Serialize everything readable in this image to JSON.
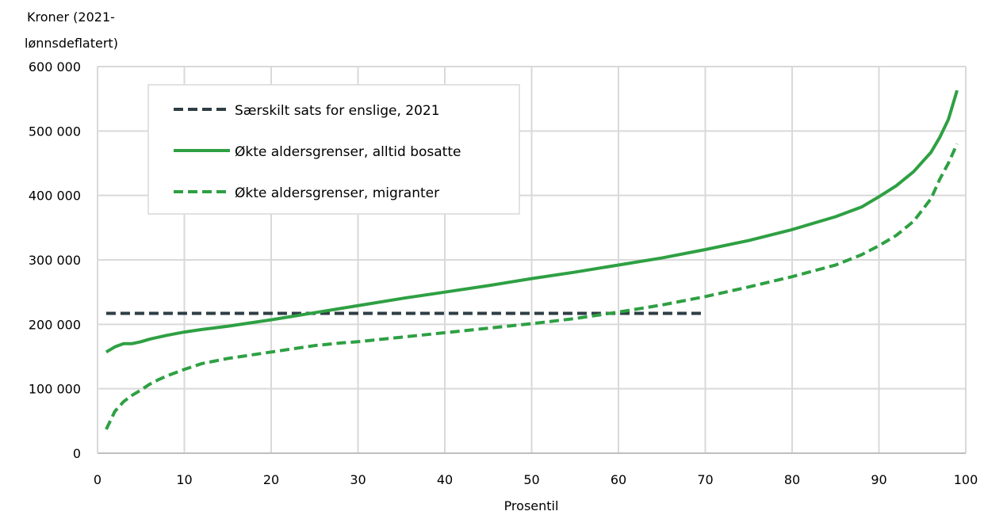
{
  "chart_data": {
    "type": "line",
    "xlabel": "Prosentil",
    "ylabel": [
      "Kroner (2021-",
      "lønnsdeflatert)"
    ],
    "xlim": [
      0,
      100
    ],
    "ylim": [
      0,
      600000
    ],
    "xticks": [
      0,
      10,
      20,
      30,
      40,
      50,
      60,
      70,
      80,
      90,
      100
    ],
    "yticks": [
      0,
      100000,
      200000,
      300000,
      400000,
      500000,
      600000
    ],
    "xtick_labels": [
      "0",
      "10",
      "20",
      "30",
      "40",
      "50",
      "60",
      "70",
      "80",
      "90",
      "100"
    ],
    "ytick_labels": [
      "0",
      "100 000",
      "200 000",
      "300 000",
      "400 000",
      "500 000",
      "600 000"
    ],
    "grid": true,
    "legend_position": "top-left",
    "series": [
      {
        "name": "Særskilt sats for enslige, 2021",
        "color": "#2d3e44",
        "style": "dashed",
        "x": [
          1,
          70
        ],
        "y": [
          217000,
          217000
        ]
      },
      {
        "name": "Økte aldersgrenser, alltid bosatte",
        "color": "#2ea043",
        "style": "solid",
        "x": [
          1,
          2,
          3,
          4,
          5,
          6,
          8,
          10,
          12,
          15,
          20,
          25,
          30,
          35,
          40,
          45,
          50,
          55,
          60,
          65,
          70,
          75,
          80,
          85,
          88,
          90,
          92,
          94,
          96,
          97,
          98,
          99
        ],
        "y": [
          157000,
          165000,
          170000,
          170000,
          173000,
          177000,
          183000,
          188000,
          192000,
          197000,
          207000,
          218000,
          229000,
          240000,
          250000,
          260000,
          271000,
          281000,
          292000,
          303000,
          316000,
          330000,
          347000,
          367000,
          382000,
          398000,
          415000,
          437000,
          467000,
          490000,
          518000,
          563000
        ]
      },
      {
        "name": "Økte aldersgrenser, migranter",
        "color": "#2ea043",
        "style": "dashed",
        "x": [
          1,
          2,
          3,
          4,
          5,
          6,
          7,
          8,
          10,
          12,
          15,
          20,
          25,
          28,
          30,
          35,
          40,
          45,
          50,
          55,
          60,
          65,
          70,
          75,
          80,
          85,
          88,
          90,
          92,
          94,
          96,
          97,
          98,
          99
        ],
        "y": [
          37000,
          65000,
          80000,
          90000,
          98000,
          107000,
          114000,
          120000,
          130000,
          139000,
          147000,
          157000,
          167000,
          171000,
          173000,
          180000,
          187000,
          194000,
          201000,
          209000,
          219000,
          230000,
          243000,
          258000,
          274000,
          292000,
          308000,
          322000,
          338000,
          360000,
          395000,
          425000,
          450000,
          480000
        ]
      }
    ]
  }
}
